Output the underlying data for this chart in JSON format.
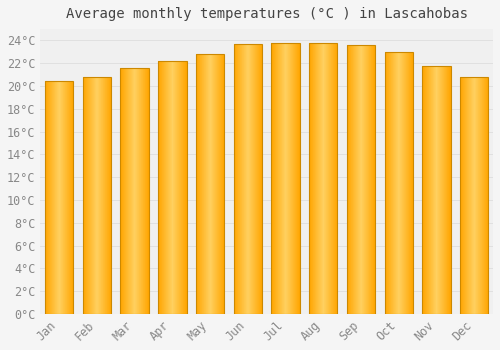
{
  "title": "Average monthly temperatures (°C ) in Lascahobas",
  "months": [
    "Jan",
    "Feb",
    "Mar",
    "Apr",
    "May",
    "Jun",
    "Jul",
    "Aug",
    "Sep",
    "Oct",
    "Nov",
    "Dec"
  ],
  "temperatures": [
    20.4,
    20.8,
    21.6,
    22.2,
    22.8,
    23.7,
    23.8,
    23.8,
    23.6,
    23.0,
    21.8,
    20.8
  ],
  "bar_color_face": "#FFA500",
  "bar_color_edge": "#CC8800",
  "bar_color_light": "#FFD060",
  "background_color": "#F5F5F5",
  "plot_bg_color": "#F0F0F0",
  "grid_color": "#DDDDDD",
  "title_color": "#444444",
  "tick_label_color": "#888888",
  "ylim": [
    0,
    25
  ],
  "ytick_step": 2,
  "title_fontsize": 10,
  "tick_fontsize": 8.5
}
